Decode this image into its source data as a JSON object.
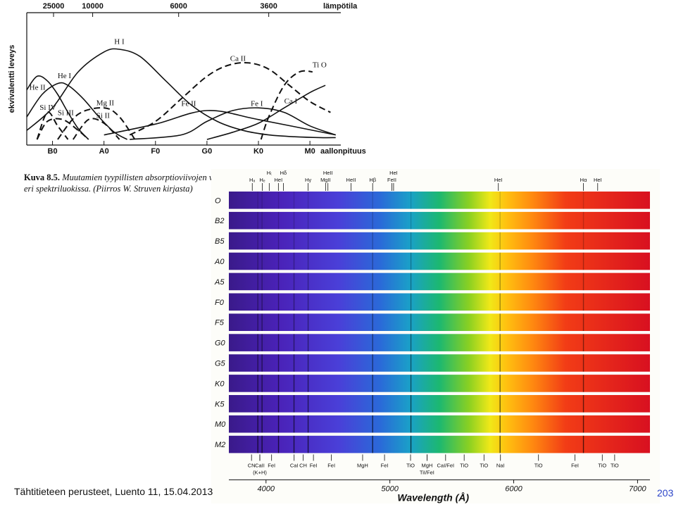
{
  "chart_data": {
    "type": "line",
    "top_axis_title": "lämpötila",
    "top_ticks": [
      "25000",
      "10000",
      "6000",
      "3600"
    ],
    "ylabel": "ekvivalentti leveys",
    "xlabel": "aallonpituus",
    "categories": [
      "B0",
      "A0",
      "F0",
      "G0",
      "K0",
      "M0"
    ],
    "x_scale": {
      "min": -0.5,
      "max": 5.6
    },
    "top_tick_positions": [
      0.02,
      0.78,
      2.45,
      4.2
    ],
    "series": [
      {
        "name": "He II",
        "style": "solid",
        "x": [
          -0.5,
          -0.3,
          -0.1,
          0.1,
          0.3,
          0.5,
          0.7
        ],
        "y": [
          0.55,
          0.7,
          0.65,
          0.5,
          0.3,
          0.12,
          0.0
        ]
      },
      {
        "name": "He I",
        "style": "solid",
        "x": [
          -0.5,
          -0.2,
          0.1,
          0.3,
          0.6,
          0.9,
          1.2,
          1.45
        ],
        "y": [
          0.25,
          0.5,
          0.62,
          0.6,
          0.45,
          0.25,
          0.08,
          0.0
        ]
      },
      {
        "name": "H I",
        "style": "solid",
        "x": [
          -0.5,
          0.0,
          0.5,
          1.0,
          1.3,
          1.7,
          2.2,
          2.7,
          3.2,
          3.7,
          4.2,
          4.7,
          5.2,
          5.5
        ],
        "y": [
          0.1,
          0.35,
          0.75,
          0.97,
          1.0,
          0.92,
          0.65,
          0.38,
          0.2,
          0.1,
          0.05,
          0.03,
          0.02,
          0.02
        ]
      },
      {
        "name": "Si IV",
        "style": "dashed",
        "x": [
          -0.3,
          -0.1,
          0.1,
          0.3
        ],
        "y": [
          0.0,
          0.3,
          0.15,
          0.0
        ]
      },
      {
        "name": "Si III",
        "style": "dashed",
        "x": [
          -0.3,
          -0.1,
          0.2,
          0.5,
          0.7
        ],
        "y": [
          0.0,
          0.2,
          0.22,
          0.1,
          0.0
        ]
      },
      {
        "name": "Mg II",
        "style": "dashed",
        "x": [
          0.1,
          0.5,
          1.0,
          1.3,
          1.6
        ],
        "y": [
          0.0,
          0.28,
          0.35,
          0.25,
          0.0
        ]
      },
      {
        "name": "Si II",
        "style": "dashed",
        "x": [
          0.4,
          0.7,
          1.0,
          1.3
        ],
        "y": [
          0.0,
          0.22,
          0.18,
          0.0
        ]
      },
      {
        "name": "Ca II",
        "style": "dashed",
        "x": [
          1.5,
          2.0,
          2.5,
          3.0,
          3.4,
          3.8,
          4.2,
          4.6,
          5.0,
          5.4
        ],
        "y": [
          0.05,
          0.2,
          0.45,
          0.7,
          0.82,
          0.85,
          0.78,
          0.6,
          0.42,
          0.3
        ]
      },
      {
        "name": "Fe II",
        "style": "solid",
        "x": [
          1.0,
          2.0,
          3.0,
          4.0,
          5.5
        ],
        "y": [
          0.05,
          0.17,
          0.32,
          0.22,
          0.05
        ]
      },
      {
        "name": "Fe I",
        "style": "solid",
        "x": [
          1.5,
          2.5,
          3.0,
          3.5,
          4.0,
          4.5,
          5.0,
          5.5
        ],
        "y": [
          0.0,
          0.05,
          0.2,
          0.32,
          0.35,
          0.3,
          0.15,
          0.05
        ]
      },
      {
        "name": "Ca I",
        "style": "solid",
        "x": [
          3.0,
          3.5,
          4.0,
          4.5,
          5.0,
          5.3
        ],
        "y": [
          0.0,
          0.08,
          0.18,
          0.35,
          0.52,
          0.6
        ]
      },
      {
        "name": "Ti O",
        "style": "dashed",
        "x": [
          4.05,
          4.2,
          4.5,
          4.8,
          5.05
        ],
        "y": [
          0.0,
          0.25,
          0.6,
          0.75,
          0.75
        ]
      }
    ],
    "labels": [
      {
        "text": "He II",
        "x": -0.45,
        "y": 0.55
      },
      {
        "text": "He I",
        "x": 0.1,
        "y": 0.68
      },
      {
        "text": "H I",
        "x": 1.2,
        "y": 1.06
      },
      {
        "text": "Si IV",
        "x": -0.25,
        "y": 0.33
      },
      {
        "text": "Si III",
        "x": 0.1,
        "y": 0.27
      },
      {
        "text": "Mg II",
        "x": 0.85,
        "y": 0.38
      },
      {
        "text": "Si II",
        "x": 0.85,
        "y": 0.24
      },
      {
        "text": "Ca II",
        "x": 3.45,
        "y": 0.87
      },
      {
        "text": "Fe II",
        "x": 2.5,
        "y": 0.37
      },
      {
        "text": "Fe I",
        "x": 3.85,
        "y": 0.37
      },
      {
        "text": "Ca I",
        "x": 4.5,
        "y": 0.4
      },
      {
        "text": "Ti O",
        "x": 5.05,
        "y": 0.8
      }
    ]
  },
  "caption": {
    "label": "Kuva 8.5.",
    "line1": "Muutamien tyypillisten absorptioviivojen voimakkuudet",
    "line2": "eri spektriluokissa. (Piirros W. Struven kirjasta)"
  },
  "spectra": {
    "classes": [
      "O",
      "B2",
      "B5",
      "A0",
      "A5",
      "F0",
      "F5",
      "G0",
      "G5",
      "K0",
      "K5",
      "M0",
      "M2"
    ],
    "wavelength_range": [
      3700,
      7100
    ],
    "xlabel": "Wavelength (Å)",
    "ticks": [
      4000,
      5000,
      6000,
      7000
    ],
    "top_labels": [
      {
        "text": "H₈",
        "w": 3889
      },
      {
        "text": "Hₑ",
        "w": 3970
      },
      {
        "text": "H₍",
        "w": 4026
      },
      {
        "text": "HeI",
        "w": 4100
      },
      {
        "text": "Hδ",
        "w": 4140
      },
      {
        "text": "Hγ",
        "w": 4340
      },
      {
        "text": "MgII",
        "w": 4481
      },
      {
        "text": "HeII",
        "w": 4500
      },
      {
        "text": "HeII",
        "w": 4686
      },
      {
        "text": "Hβ",
        "w": 4861
      },
      {
        "text": "FeII",
        "w": 5016
      },
      {
        "text": "HeI",
        "w": 5030
      },
      {
        "text": "HeI",
        "w": 5876
      },
      {
        "text": "Hα",
        "w": 6563
      },
      {
        "text": "HeI",
        "w": 6678
      }
    ],
    "bottom_labels": [
      {
        "text": "CN",
        "w": 3883
      },
      {
        "text": "CaII",
        "w": 3950
      },
      {
        "text": "(K+H)",
        "w": 3950
      },
      {
        "text": "FeI",
        "w": 4045
      },
      {
        "text": "CaI",
        "w": 4227
      },
      {
        "text": "CH",
        "w": 4300
      },
      {
        "text": "FeI",
        "w": 4383
      },
      {
        "text": "FeI",
        "w": 4528
      },
      {
        "text": "MgH",
        "w": 4780
      },
      {
        "text": "FeI",
        "w": 4957
      },
      {
        "text": "TiO",
        "w": 5167
      },
      {
        "text": "MgH",
        "w": 5300
      },
      {
        "text": "TiI/FeI",
        "w": 5300
      },
      {
        "text": "CaI/FeI",
        "w": 5450
      },
      {
        "text": "TiO",
        "w": 5600
      },
      {
        "text": "TiO",
        "w": 5760
      },
      {
        "text": "NaI",
        "w": 5893
      },
      {
        "text": "TiO",
        "w": 6200
      },
      {
        "text": "FeI",
        "w": 6495
      },
      {
        "text": "TiO",
        "w": 6715
      },
      {
        "text": "TiO",
        "w": 6815
      }
    ],
    "strong_lines": [
      3934,
      3968,
      4101,
      4226,
      4340,
      4861,
      5170,
      5890,
      6563
    ]
  },
  "footer": {
    "text": "Tähtitieteen perusteet, Luento 11, 15.04.2013",
    "page": "203"
  },
  "colors": {
    "page_number": "#2b44c8",
    "ink": "#111111"
  }
}
